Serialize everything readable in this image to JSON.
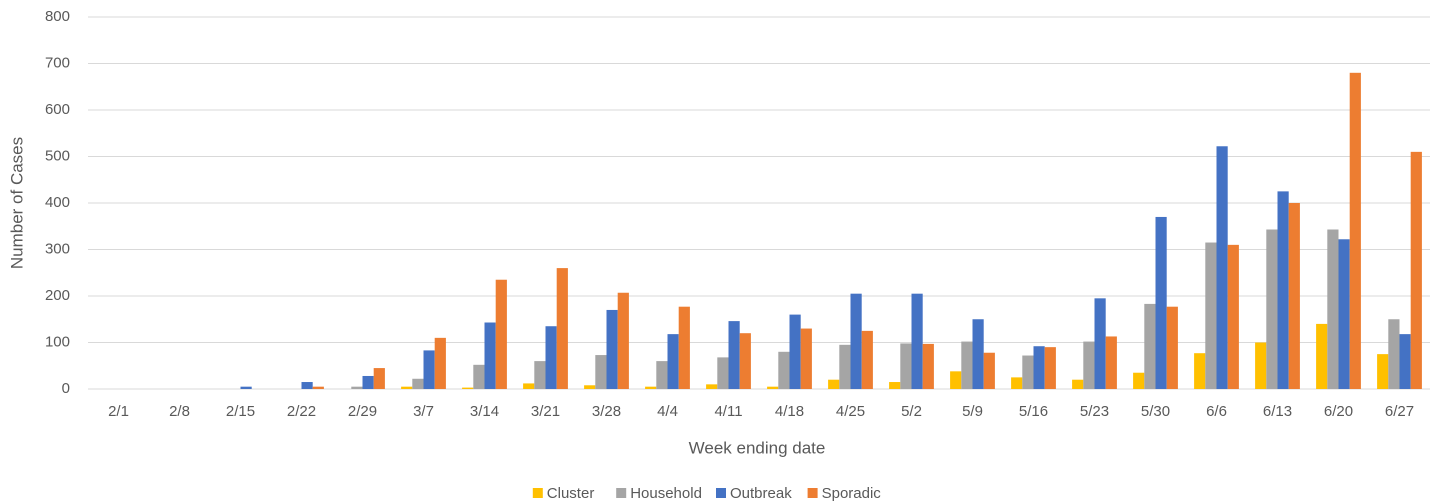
{
  "chart_data": {
    "type": "bar",
    "x_label": "Week ending date",
    "y_label": "Number of Cases",
    "categories": [
      "2/1",
      "2/8",
      "2/15",
      "2/22",
      "2/29",
      "3/7",
      "3/14",
      "3/21",
      "3/28",
      "4/4",
      "4/11",
      "4/18",
      "4/25",
      "5/2",
      "5/9",
      "5/16",
      "5/23",
      "5/30",
      "6/6",
      "6/13",
      "6/20",
      "6/27"
    ],
    "series": [
      {
        "name": "Cluster",
        "color": "#ffc000",
        "values": [
          0,
          0,
          0,
          0,
          0,
          5,
          3,
          12,
          8,
          5,
          10,
          5,
          20,
          15,
          38,
          25,
          20,
          35,
          77,
          100,
          140,
          75
        ]
      },
      {
        "name": "Household",
        "color": "#a5a5a5",
        "values": [
          0,
          0,
          0,
          0,
          5,
          22,
          52,
          60,
          73,
          60,
          68,
          80,
          95,
          98,
          102,
          72,
          102,
          183,
          315,
          343,
          343,
          150
        ]
      },
      {
        "name": "Outbreak",
        "color": "#4472c4",
        "values": [
          0,
          0,
          5,
          15,
          28,
          83,
          143,
          135,
          170,
          118,
          146,
          160,
          205,
          205,
          150,
          92,
          195,
          370,
          522,
          425,
          322,
          118
        ]
      },
      {
        "name": "Sporadic",
        "color": "#ed7d31",
        "values": [
          0,
          0,
          0,
          5,
          45,
          110,
          235,
          260,
          207,
          177,
          120,
          130,
          125,
          97,
          78,
          90,
          113,
          177,
          310,
          400,
          680,
          510
        ]
      }
    ],
    "ylim": [
      0,
      800
    ],
    "yticks": [
      0,
      100,
      200,
      300,
      400,
      500,
      600,
      700,
      800
    ],
    "grid": true,
    "legend": "bottom"
  }
}
